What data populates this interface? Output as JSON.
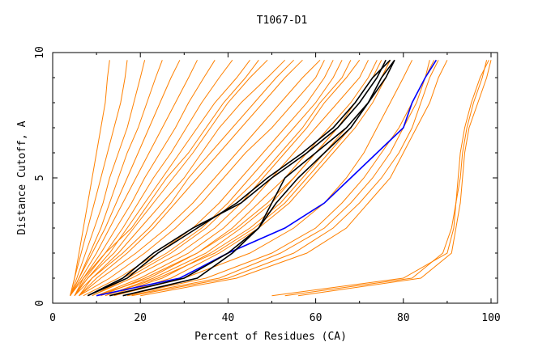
{
  "chart_data": {
    "type": "line",
    "title": "T1067-D1",
    "xlabel": "Percent of Residues (CA)",
    "ylabel": "Distance Cutoff, A",
    "xlim": [
      0,
      100
    ],
    "ylim": [
      0,
      10
    ],
    "xticks": [
      0,
      20,
      40,
      60,
      80,
      100
    ],
    "yticks": [
      0,
      5,
      10
    ],
    "grid": false,
    "y": [
      0.3,
      1,
      2,
      3,
      4,
      5,
      6,
      7,
      8,
      9,
      9.7
    ],
    "colors": {
      "other": "#ff8000",
      "highlight": "#000000",
      "reference": "#0000ff"
    },
    "series": [
      {
        "group": "other",
        "x": [
          4,
          5,
          6,
          7,
          8,
          9,
          10,
          11,
          12,
          12.5,
          13
        ]
      },
      {
        "group": "other",
        "x": [
          4,
          5,
          6.5,
          8,
          9.5,
          11,
          12.5,
          14,
          15.5,
          16.5,
          17
        ]
      },
      {
        "group": "other",
        "x": [
          4,
          5.5,
          7.5,
          9.5,
          11.5,
          13,
          15,
          17,
          18.5,
          20,
          21
        ]
      },
      {
        "group": "other",
        "x": [
          4,
          6,
          8.5,
          11,
          13,
          15,
          17,
          19.5,
          21.5,
          23.5,
          25
        ]
      },
      {
        "group": "other",
        "x": [
          4,
          6,
          9,
          12,
          14.5,
          17,
          19.5,
          22,
          24.5,
          27,
          29
        ]
      },
      {
        "group": "other",
        "x": [
          4,
          6.5,
          10,
          13,
          16,
          19,
          22,
          25,
          28,
          31,
          33
        ]
      },
      {
        "group": "other",
        "x": [
          5,
          7,
          11,
          14.5,
          18,
          21,
          24.5,
          28,
          31,
          34.5,
          37
        ]
      },
      {
        "group": "other",
        "x": [
          5,
          7.5,
          12,
          16,
          19.5,
          23,
          27,
          30.5,
          34,
          38,
          41
        ]
      },
      {
        "group": "other",
        "x": [
          5,
          8,
          13,
          17,
          21,
          25,
          29,
          33,
          37,
          42,
          45
        ]
      },
      {
        "group": "other",
        "x": [
          5,
          8,
          14,
          18.5,
          23,
          27.5,
          32,
          36,
          40,
          45,
          49
        ]
      },
      {
        "group": "other",
        "x": [
          6,
          9,
          15,
          20,
          25,
          30,
          34,
          38,
          43,
          49,
          53
        ]
      },
      {
        "group": "other",
        "x": [
          6,
          10,
          17,
          23,
          28,
          33,
          38,
          43,
          48,
          53,
          57
        ]
      },
      {
        "group": "other",
        "x": [
          6,
          11,
          19,
          26,
          32,
          37,
          42,
          47,
          52,
          57,
          61
        ]
      },
      {
        "group": "other",
        "x": [
          5,
          9,
          16,
          22,
          27,
          31,
          36,
          41,
          46,
          51,
          55
        ]
      },
      {
        "group": "other",
        "x": [
          4,
          7,
          12,
          18,
          22,
          26,
          31,
          35,
          39,
          44,
          47
        ]
      },
      {
        "group": "other",
        "x": [
          6,
          13,
          21,
          28,
          34,
          39,
          44,
          50,
          55,
          60,
          62
        ]
      },
      {
        "group": "other",
        "x": [
          7,
          15,
          24,
          32,
          38,
          43,
          48,
          53,
          58,
          62,
          64
        ]
      },
      {
        "group": "other",
        "x": [
          8,
          16,
          26,
          34,
          40,
          45,
          50,
          55,
          60,
          64,
          66
        ]
      },
      {
        "group": "other",
        "x": [
          9,
          17,
          27,
          35,
          41,
          47,
          52,
          57,
          61,
          66,
          68
        ]
      },
      {
        "group": "other",
        "x": [
          9,
          18,
          29,
          37,
          43,
          48,
          53,
          58,
          62,
          67,
          70
        ]
      },
      {
        "group": "other",
        "x": [
          10,
          20,
          31,
          39,
          45,
          50,
          55,
          60,
          65,
          70,
          72
        ]
      },
      {
        "group": "other",
        "x": [
          11,
          21,
          33,
          41,
          47,
          53,
          58,
          63,
          68,
          72,
          74
        ]
      },
      {
        "group": "other",
        "x": [
          10,
          22,
          33,
          42,
          49,
          55,
          60,
          65,
          69,
          73,
          75
        ]
      },
      {
        "group": "other",
        "x": [
          12,
          23,
          35,
          43,
          50,
          55,
          60,
          65,
          70,
          74,
          76
        ]
      },
      {
        "group": "other",
        "x": [
          12,
          24,
          37,
          46,
          53,
          58,
          63,
          68,
          72,
          75,
          77
        ]
      },
      {
        "group": "other",
        "x": [
          13,
          25,
          36,
          45,
          52,
          57,
          62,
          67,
          72,
          75,
          77
        ]
      },
      {
        "group": "other",
        "x": [
          14,
          27,
          38,
          47,
          54,
          59,
          64,
          69,
          73,
          76,
          78
        ]
      },
      {
        "group": "other",
        "x": [
          14,
          30,
          45,
          55,
          62,
          67,
          71,
          74,
          77,
          80,
          82
        ]
      },
      {
        "group": "other",
        "x": [
          16,
          35,
          50,
          60,
          66,
          71,
          75,
          79,
          82,
          85,
          86
        ]
      },
      {
        "group": "other",
        "x": [
          17,
          38,
          52,
          62,
          68,
          73,
          77,
          80,
          83,
          85,
          87
        ]
      },
      {
        "group": "other",
        "x": [
          18,
          40,
          55,
          64,
          70,
          75,
          79,
          82,
          84,
          86,
          88
        ]
      },
      {
        "group": "other",
        "x": [
          20,
          42,
          58,
          67,
          72,
          77,
          80,
          83,
          86,
          88,
          90
        ]
      },
      {
        "group": "other",
        "x": [
          50,
          80,
          90,
          91.5,
          92,
          93,
          93.5,
          94.5,
          96,
          98,
          99
        ]
      },
      {
        "group": "other",
        "x": [
          53,
          82,
          89,
          91,
          92,
          92.5,
          93,
          94,
          95.5,
          97.5,
          99.5
        ]
      },
      {
        "group": "other",
        "x": [
          56,
          84,
          91,
          92,
          93,
          93.5,
          94,
          95,
          97,
          99,
          100
        ]
      },
      {
        "group": "highlight",
        "x": [
          8,
          16,
          23,
          32,
          43,
          50,
          58,
          65,
          70,
          74,
          76
        ]
      },
      {
        "group": "highlight",
        "x": [
          8,
          17,
          24,
          33,
          42,
          49,
          57,
          64,
          69,
          73,
          77
        ]
      },
      {
        "group": "highlight",
        "x": [
          13,
          30,
          40,
          47,
          50,
          53,
          60,
          67,
          72,
          75,
          78
        ]
      },
      {
        "group": "highlight",
        "x": [
          16,
          33,
          41,
          47,
          51,
          56,
          62,
          68,
          72,
          76,
          78
        ]
      },
      {
        "group": "reference",
        "x": [
          10,
          29,
          40,
          53,
          62,
          68,
          74,
          80,
          82,
          85,
          87.5
        ]
      }
    ]
  }
}
